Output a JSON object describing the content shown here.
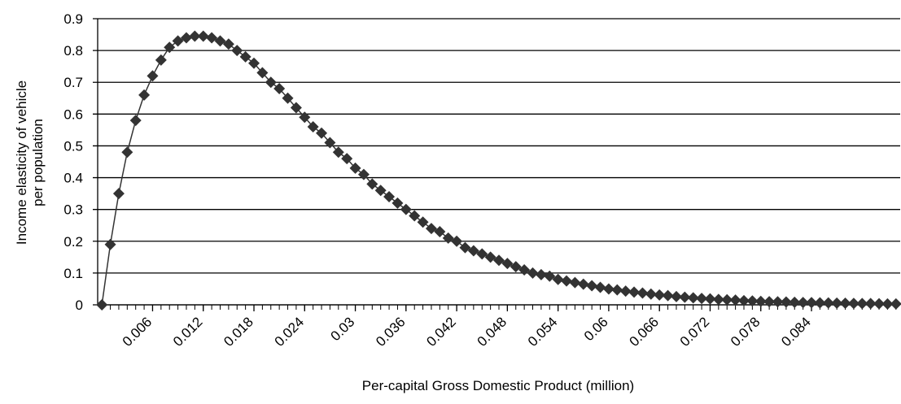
{
  "chart_data": {
    "type": "line",
    "xlabel": "Per-capital Gross Domestic Product (million)",
    "ylabel": [
      "Income elasticity of vehicle",
      "per population"
    ],
    "x": [
      0,
      0.001,
      0.002,
      0.003,
      0.004,
      0.005,
      0.006,
      0.007,
      0.008,
      0.009,
      0.01,
      0.011,
      0.012,
      0.013,
      0.014,
      0.015,
      0.016,
      0.017,
      0.018,
      0.019,
      0.02,
      0.021,
      0.022,
      0.023,
      0.024,
      0.025,
      0.026,
      0.027,
      0.028,
      0.029,
      0.03,
      0.031,
      0.032,
      0.033,
      0.034,
      0.035,
      0.036,
      0.037,
      0.038,
      0.039,
      0.04,
      0.041,
      0.042,
      0.043,
      0.044,
      0.045,
      0.046,
      0.047,
      0.048,
      0.049,
      0.05,
      0.051,
      0.052,
      0.053,
      0.054,
      0.055,
      0.056,
      0.057,
      0.058,
      0.059,
      0.06,
      0.061,
      0.062,
      0.063,
      0.064,
      0.065,
      0.066,
      0.067,
      0.068,
      0.069,
      0.07,
      0.071,
      0.072,
      0.073,
      0.074,
      0.075,
      0.076,
      0.077,
      0.078,
      0.079,
      0.08,
      0.081,
      0.082,
      0.083,
      0.084,
      0.085,
      0.086,
      0.087,
      0.088,
      0.089,
      0.09,
      0.091,
      0.092,
      0.093,
      0.094
    ],
    "series": [
      {
        "color": "#333333",
        "values": [
          0,
          0.19,
          0.35,
          0.48,
          0.58,
          0.66,
          0.72,
          0.77,
          0.81,
          0.83,
          0.84,
          0.845,
          0.845,
          0.84,
          0.83,
          0.82,
          0.8,
          0.78,
          0.76,
          0.73,
          0.7,
          0.68,
          0.65,
          0.62,
          0.59,
          0.56,
          0.54,
          0.51,
          0.48,
          0.46,
          0.43,
          0.41,
          0.38,
          0.36,
          0.34,
          0.32,
          0.3,
          0.28,
          0.26,
          0.24,
          0.23,
          0.21,
          0.2,
          0.18,
          0.17,
          0.16,
          0.15,
          0.14,
          0.13,
          0.12,
          0.11,
          0.1,
          0.095,
          0.09,
          0.08,
          0.075,
          0.07,
          0.065,
          0.06,
          0.055,
          0.05,
          0.047,
          0.043,
          0.04,
          0.037,
          0.034,
          0.031,
          0.029,
          0.026,
          0.024,
          0.022,
          0.02,
          0.019,
          0.017,
          0.016,
          0.015,
          0.013,
          0.012,
          0.011,
          0.01,
          0.0095,
          0.009,
          0.008,
          0.0075,
          0.007,
          0.0065,
          0.006,
          0.0055,
          0.005,
          0.0045,
          0.004,
          0.004,
          0.0035,
          0.003,
          0.003
        ]
      }
    ],
    "xlim": [
      -0.0005,
      0.0945
    ],
    "xticks": [
      0.006,
      0.012,
      0.018,
      0.024,
      0.03,
      0.036,
      0.042,
      0.048,
      0.054,
      0.06,
      0.066,
      0.072,
      0.078,
      0.084
    ],
    "ylim": [
      0,
      0.9
    ],
    "yticks": [
      0,
      0.1,
      0.2,
      0.3,
      0.4,
      0.5,
      0.6,
      0.7,
      0.8,
      0.9
    ],
    "grid": true
  }
}
